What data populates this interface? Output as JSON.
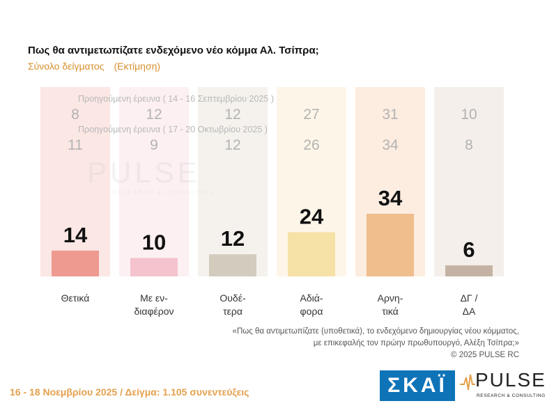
{
  "header": {
    "title": "Πως θα αντιμετωπίζατε ενδεχόμενο νέο κόμμα Αλ. Τσίπρα;",
    "subtitle": "Σύνολο δείγματος",
    "subtitle_tag": "(Εκτίμηση)"
  },
  "chart_data": {
    "type": "bar",
    "categories": [
      [
        "Θετικά"
      ],
      [
        "Με εν-",
        "διαφέρον"
      ],
      [
        "Ουδέ-",
        "τερα"
      ],
      [
        "Αδιά-",
        "φορα"
      ],
      [
        "Αρνη-",
        "τικά"
      ],
      [
        "ΔΓ /",
        "ΔΑ"
      ]
    ],
    "values": [
      14,
      10,
      12,
      24,
      34,
      6
    ],
    "bar_colors": [
      "#ee9a91",
      "#f5c3cd",
      "#d2cbbe",
      "#f6e1a6",
      "#f0bd8c",
      "#c4b3a4"
    ],
    "column_colors": [
      "#fbe7e4",
      "#fcf0f2",
      "#f5f2ee",
      "#fdf6e8",
      "#fcede0",
      "#f4efeb"
    ],
    "previous_surveys": [
      {
        "label": "Προηγούμενη έρευνα ( 14 - 16 Σεπτεμβρίου 2025 )",
        "values": [
          8,
          12,
          12,
          27,
          31,
          10
        ]
      },
      {
        "label": "Προηγούμενη έρευνα ( 17 - 20 Οκτωβρίου 2025 )",
        "values": [
          11,
          9,
          12,
          26,
          34,
          8
        ]
      }
    ],
    "ylim": [
      0,
      40
    ]
  },
  "watermark": {
    "brand": "PULSE",
    "tagline": "RESEARCH & CONSULTING"
  },
  "footnote": {
    "line1": "«Πως θα αντιμετωπίζατε (υποθετικά), το ενδεχόμενο δημιουργίας νέου κόμματος,",
    "line2": "με επικεφαλής τον πρώην πρωθυπουργό, Αλέξη Τσίπρα;»",
    "line3": "©  2025  PULSE RC"
  },
  "footer": {
    "date_sample": "16 - 18 Νοεμβρίου 2025  /  Δείγμα:  1.105 συνεντεύξεις"
  },
  "logos": {
    "skai": "ΣΚΑΪ",
    "pulse": "PULSE",
    "pulse_tagline": "RESEARCH & CONSULTING"
  }
}
